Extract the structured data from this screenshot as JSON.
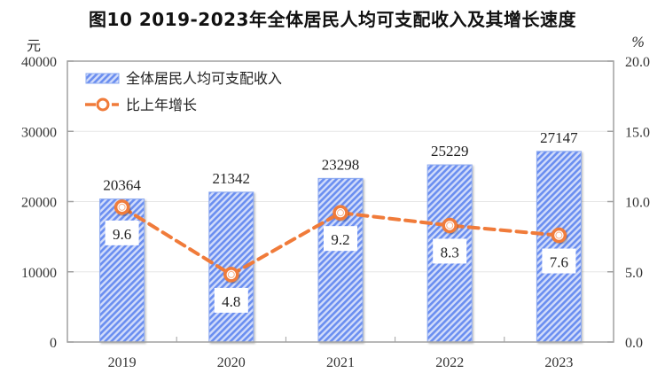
{
  "title": "图10  2019-2023年全体居民人均可支配收入及其增长速度",
  "left_unit": "元",
  "right_unit": "%",
  "legend": {
    "bar_label": "全体居民人均可支配收入",
    "line_label": "比上年增长"
  },
  "colors": {
    "bar_stripe": "#6a8ef0",
    "bar_bg": "#d2dcfa",
    "bar_border": "#8aa8f0",
    "line": "#f07b3a",
    "axis": "#a0a0a0",
    "grid": "#e6e6e6"
  },
  "chart_data": {
    "type": "bar+line",
    "title": "图10  2019-2023年全体居民人均可支配收入及其增长速度",
    "categories": [
      "2019",
      "2020",
      "2021",
      "2022",
      "2023"
    ],
    "series": [
      {
        "name": "全体居民人均可支配收入",
        "type": "bar",
        "axis": "left",
        "unit": "元",
        "values": [
          20364,
          21342,
          23298,
          25229,
          27147
        ]
      },
      {
        "name": "比上年增长",
        "type": "line",
        "axis": "right",
        "unit": "%",
        "values": [
          9.6,
          4.8,
          9.2,
          8.3,
          7.6
        ]
      }
    ],
    "left_axis": {
      "label": "元",
      "ylim": [
        0,
        40000
      ],
      "ticks": [
        "0",
        "10000",
        "20000",
        "30000",
        "40000"
      ]
    },
    "right_axis": {
      "label": "%",
      "ylim": [
        0,
        20
      ],
      "ticks": [
        "0.0",
        "5.0",
        "10.0",
        "15.0",
        "20.0"
      ]
    },
    "grid": true,
    "legend_position": "top-left inside"
  }
}
